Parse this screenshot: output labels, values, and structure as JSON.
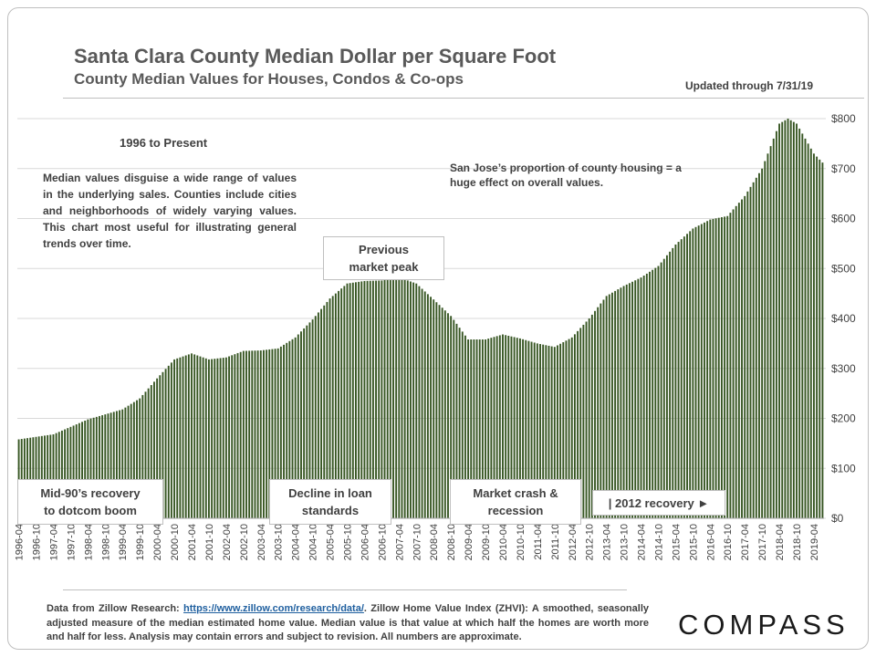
{
  "title": "Santa Clara County Median Dollar per Square Foot",
  "subtitle": "County Median Values for Houses, Condos & Co-ops",
  "updated": "Updated through 7/31/19",
  "annotations": {
    "period": "1996 to Present",
    "note1": "Median values disguise a wide range of values in the underlying sales. Counties include cities and neighborhoods of widely varying values. This chart most useful for illustrating general trends over time.",
    "note2": "San Jose’s proportion of county housing = a huge effect on overall values.",
    "peak": [
      "Previous",
      "market peak"
    ],
    "mid90s": [
      "Mid-90’s recovery",
      "to dotcom boom"
    ],
    "loan": [
      "Decline in loan",
      "standards"
    ],
    "crash": [
      "Market crash &",
      "recession"
    ],
    "recovery": "| 2012 recovery ►"
  },
  "footer": {
    "prefix": "Data from Zillow Research: ",
    "link": "https://www.zillow.com/research/data/",
    "suffix": ". Zillow Home Value Index (ZHVI): A smoothed, seasonally adjusted measure of the median estimated home value. Median value is that value at which half the homes are worth more and half for less. Analysis may contain errors and subject to revision. All numbers are approximate."
  },
  "logo": "COMPASS",
  "colors": {
    "bar": "#375623",
    "grid": "#d9d9d9",
    "text": "#404040"
  },
  "chart_data": {
    "type": "bar",
    "x_start": "1996-04",
    "x_end": "2019-07",
    "frequency": "monthly",
    "ylim": [
      0,
      800
    ],
    "yticks": [
      0,
      100,
      200,
      300,
      400,
      500,
      600,
      700,
      800
    ],
    "ytick_labels": [
      "$0",
      "$100",
      "$200",
      "$300",
      "$400",
      "$500",
      "$600",
      "$700",
      "$800"
    ],
    "xtick_labels": [
      "1996-04",
      "1996-10",
      "1997-04",
      "1997-10",
      "1998-04",
      "1998-10",
      "1999-04",
      "1999-10",
      "2000-04",
      "2000-10",
      "2001-04",
      "2001-10",
      "2002-04",
      "2002-10",
      "2003-04",
      "2003-10",
      "2004-04",
      "2004-10",
      "2005-04",
      "2005-10",
      "2006-04",
      "2006-10",
      "2007-04",
      "2007-10",
      "2008-04",
      "2008-10",
      "2009-04",
      "2009-10",
      "2010-04",
      "2010-10",
      "2011-04",
      "2011-10",
      "2012-04",
      "2012-10",
      "2013-04",
      "2013-10",
      "2014-04",
      "2014-10",
      "2015-04",
      "2015-10",
      "2016-04",
      "2016-10",
      "2017-04",
      "2017-10",
      "2018-04",
      "2018-10",
      "2019-04"
    ],
    "grid": true,
    "y_axis_side": "right",
    "anchor_points": [
      [
        "1996-04",
        158
      ],
      [
        "1997-04",
        168
      ],
      [
        "1997-10",
        183
      ],
      [
        "1998-04",
        198
      ],
      [
        "1998-10",
        208
      ],
      [
        "1999-04",
        218
      ],
      [
        "1999-10",
        240
      ],
      [
        "2000-04",
        280
      ],
      [
        "2000-10",
        318
      ],
      [
        "2001-04",
        330
      ],
      [
        "2001-10",
        318
      ],
      [
        "2002-04",
        322
      ],
      [
        "2002-10",
        335
      ],
      [
        "2003-04",
        336
      ],
      [
        "2003-10",
        340
      ],
      [
        "2004-04",
        362
      ],
      [
        "2004-10",
        398
      ],
      [
        "2005-04",
        440
      ],
      [
        "2005-10",
        470
      ],
      [
        "2006-04",
        475
      ],
      [
        "2006-10",
        476
      ],
      [
        "2007-04",
        482
      ],
      [
        "2007-10",
        470
      ],
      [
        "2008-04",
        438
      ],
      [
        "2008-10",
        405
      ],
      [
        "2009-04",
        358
      ],
      [
        "2009-10",
        358
      ],
      [
        "2010-04",
        368
      ],
      [
        "2010-10",
        360
      ],
      [
        "2011-04",
        350
      ],
      [
        "2011-10",
        343
      ],
      [
        "2012-04",
        362
      ],
      [
        "2012-10",
        400
      ],
      [
        "2013-04",
        445
      ],
      [
        "2013-10",
        465
      ],
      [
        "2014-04",
        482
      ],
      [
        "2014-10",
        505
      ],
      [
        "2015-04",
        548
      ],
      [
        "2015-10",
        580
      ],
      [
        "2016-04",
        598
      ],
      [
        "2016-10",
        605
      ],
      [
        "2017-04",
        645
      ],
      [
        "2017-10",
        700
      ],
      [
        "2018-04",
        790
      ],
      [
        "2018-07",
        800
      ],
      [
        "2018-10",
        790
      ],
      [
        "2019-04",
        730
      ],
      [
        "2019-07",
        712
      ]
    ]
  }
}
